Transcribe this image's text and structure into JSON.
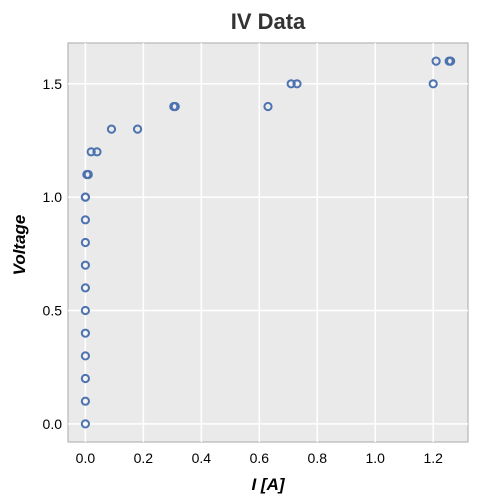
{
  "chart_data": {
    "type": "scatter",
    "title": "IV Data",
    "xlabel": "I [A]",
    "ylabel": "Voltage",
    "xlim": [
      -0.06,
      1.32
    ],
    "ylim": [
      -0.08,
      1.68
    ],
    "xticks": [
      0.0,
      0.2,
      0.4,
      0.6,
      0.8,
      1.0,
      1.2
    ],
    "yticks": [
      0.0,
      0.5,
      1.0,
      1.5
    ],
    "xtick_labels": [
      "0.0",
      "0.2",
      "0.4",
      "0.6",
      "0.8",
      "1.0",
      "1.2"
    ],
    "ytick_labels": [
      "0.0",
      "0.5",
      "1.0",
      "1.5"
    ],
    "grid": true,
    "colors": {
      "marker": "#4c72b0",
      "panel": "#eaeaea",
      "grid": "#ffffff",
      "frame": "#aaaaaa"
    },
    "series": [
      {
        "points": [
          [
            0.0,
            0.0
          ],
          [
            0.0,
            0.1
          ],
          [
            0.0,
            0.2
          ],
          [
            0.0,
            0.3
          ],
          [
            0.0,
            0.4
          ],
          [
            0.0,
            0.5
          ],
          [
            0.0,
            0.6
          ],
          [
            0.0,
            0.7
          ],
          [
            0.0,
            0.8
          ],
          [
            0.0,
            0.9
          ],
          [
            0.0,
            1.0
          ],
          [
            0.0,
            1.0
          ],
          [
            0.005,
            1.1
          ],
          [
            0.01,
            1.1
          ],
          [
            0.02,
            1.2
          ],
          [
            0.04,
            1.2
          ],
          [
            0.09,
            1.3
          ],
          [
            0.18,
            1.3
          ],
          [
            0.305,
            1.4
          ],
          [
            0.31,
            1.4
          ],
          [
            0.63,
            1.4
          ],
          [
            0.71,
            1.5
          ],
          [
            0.73,
            1.5
          ],
          [
            1.2,
            1.5
          ],
          [
            1.21,
            1.6
          ],
          [
            1.255,
            1.6
          ],
          [
            1.26,
            1.6
          ]
        ]
      }
    ]
  }
}
